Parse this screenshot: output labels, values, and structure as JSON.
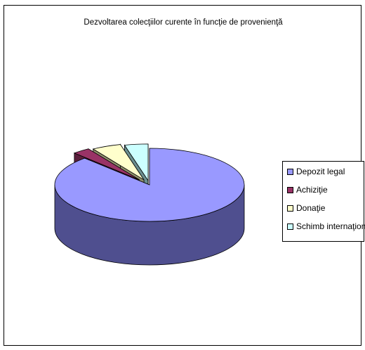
{
  "chart_data": {
    "type": "pie",
    "title": "Dezvoltarea colecţiilor curente în funcţie de provenienţă",
    "categories": [
      "Depozit legal",
      "Achiziţie",
      "Donaţie",
      "Schimb internaţional"
    ],
    "values": [
      88,
      3,
      5,
      4
    ],
    "colors": [
      "#9999ff",
      "#993366",
      "#ffffcc",
      "#ccffff"
    ],
    "side_colors": [
      "#4f4f8f",
      "#5a1f3c",
      "#8f8f6b",
      "#6b8f8f"
    ],
    "exploded": [
      "Achiziţie",
      "Donaţie",
      "Schimb internaţional"
    ],
    "three_d": true,
    "legend_position": "right"
  }
}
